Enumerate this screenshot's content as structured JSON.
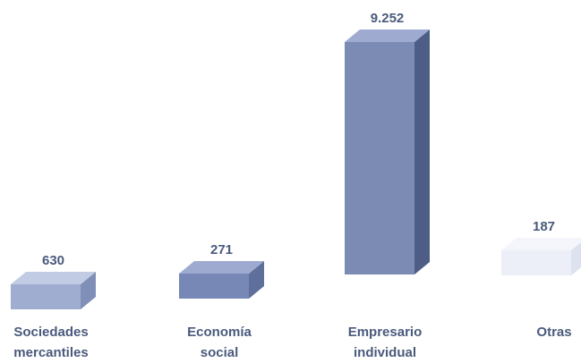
{
  "chart_data": {
    "type": "bar",
    "categories": [
      [
        "Sociedades",
        "mercantiles"
      ],
      [
        "Economía",
        "social"
      ],
      [
        "Empresario",
        "individual"
      ],
      [
        "Otras"
      ]
    ],
    "values": [
      630,
      271,
      9252,
      187
    ],
    "value_labels": [
      "630",
      "271",
      "9.252",
      "187"
    ],
    "title": "",
    "xlabel": "",
    "ylabel": "",
    "ylim": [
      0,
      9252
    ],
    "grid": false,
    "legend": "none",
    "style": "3d-box"
  },
  "colors": {
    "text": "#4a5a7c",
    "bars": [
      {
        "front": "#9fadd1",
        "side": "#7f8fb7",
        "top": "#c1cbe3"
      },
      {
        "front": "#7888b6",
        "side": "#5e6f9c",
        "top": "#9eaad0"
      },
      {
        "front": "#7c8bb4",
        "side": "#4d5d85",
        "top": "#9eaad0"
      },
      {
        "front": "#eceff7",
        "side": "#dde2ef",
        "top": "#f5f6fb"
      }
    ]
  }
}
